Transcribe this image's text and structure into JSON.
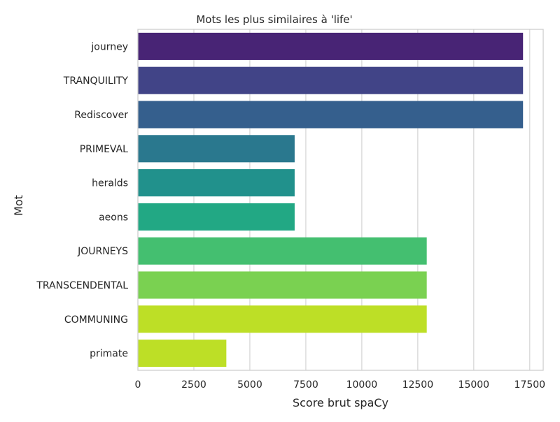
{
  "chart_data": {
    "type": "bar",
    "orientation": "horizontal",
    "title": "Mots les plus similaires à 'life'",
    "xlabel": "Score brut spaCy",
    "ylabel": "Mot",
    "xlim": [
      0,
      18100
    ],
    "xticks": [
      0,
      2500,
      5000,
      7500,
      10000,
      12500,
      15000,
      17500
    ],
    "xtick_labels": [
      "0",
      "2500",
      "5000",
      "7500",
      "10000",
      "12500",
      "15000",
      "17500"
    ],
    "grid": "vertical",
    "legend": "none",
    "categories": [
      "journey",
      "TRANQUILITY",
      "Rediscover",
      "PRIMEVAL",
      "heralds",
      "aeons",
      "JOURNEYS",
      "TRANSCENDENTAL",
      "COMMUNING",
      "primate"
    ],
    "values": [
      17200,
      17200,
      17200,
      7000,
      7000,
      7000,
      12900,
      12900,
      12900,
      3950
    ],
    "colors": [
      "#482475",
      "#414487",
      "#355f8d",
      "#2a788e",
      "#21918c",
      "#22a884",
      "#44bf70",
      "#7ad151",
      "#bddf26",
      "#bddf26"
    ]
  }
}
